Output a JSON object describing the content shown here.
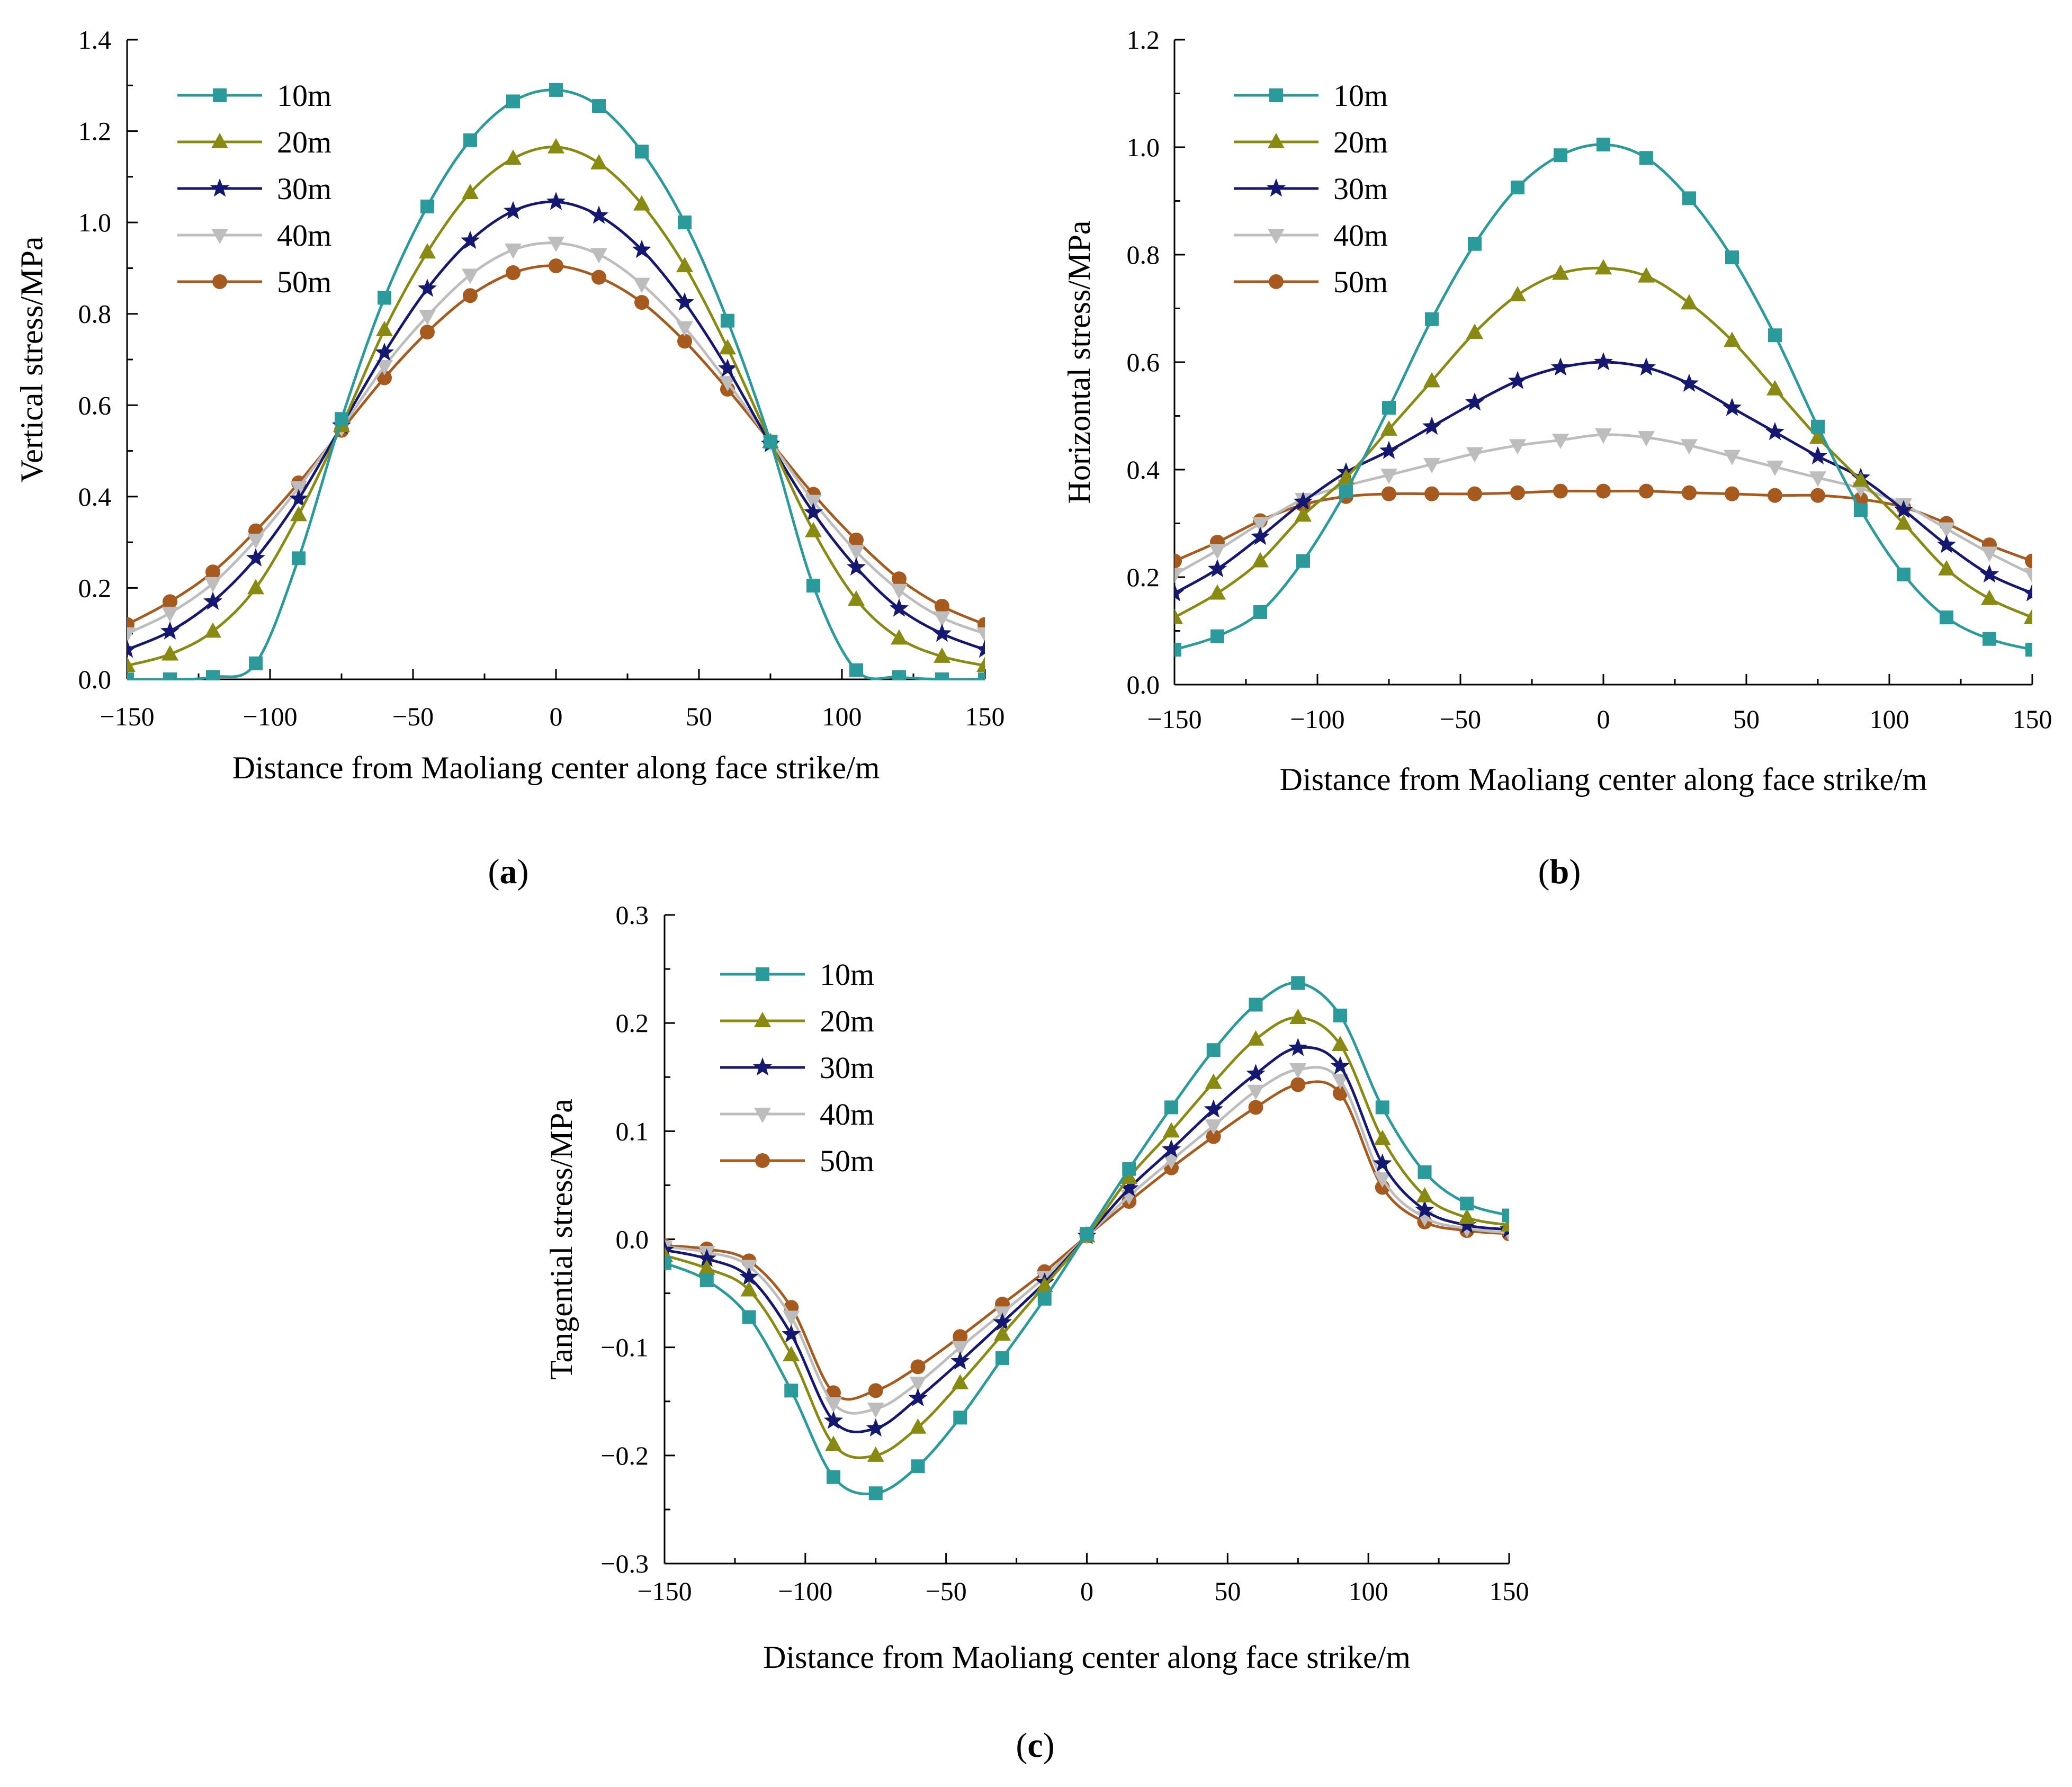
{
  "figure": {
    "panels": [
      {
        "key": "a",
        "label_open": "(",
        "label_letter": "a",
        "label_close": ")"
      },
      {
        "key": "b",
        "label_open": "(",
        "label_letter": "b",
        "label_close": ")"
      },
      {
        "key": "c",
        "label_open": "(",
        "label_letter": "c",
        "label_close": ")"
      }
    ]
  },
  "series_styles": [
    {
      "name": "10m",
      "color": "#2a9a9a",
      "marker": "square"
    },
    {
      "name": "20m",
      "color": "#888a12",
      "marker": "triangle-up"
    },
    {
      "name": "30m",
      "color": "#151870",
      "marker": "star"
    },
    {
      "name": "40m",
      "color": "#bdbdbd",
      "marker": "triangle-down"
    },
    {
      "name": "50m",
      "color": "#a65a1e",
      "marker": "circle"
    }
  ],
  "chart_data": [
    {
      "id": "a",
      "type": "line",
      "title": "",
      "xlabel": "Distance from Maoliang center along face strike/m",
      "ylabel": "Vertical stress/MPa",
      "xlim": [
        -150,
        150
      ],
      "ylim": [
        0,
        1.4
      ],
      "xticks": [
        -150,
        -100,
        -50,
        0,
        50,
        100,
        150
      ],
      "xtick_labels": [
        "−150",
        "−100",
        "−50",
        "0",
        "50",
        "100",
        "150"
      ],
      "yticks": [
        0,
        0.2,
        0.4,
        0.6,
        0.8,
        1.0,
        1.2,
        1.4
      ],
      "ytick_labels": [
        "0.0",
        "0.2",
        "0.4",
        "0.6",
        "0.8",
        "1.0",
        "1.2",
        "1.4"
      ],
      "legend_position": "top-left",
      "x": [
        -150,
        -135,
        -120,
        -105,
        -90,
        -75,
        -60,
        -45,
        -30,
        -15,
        0,
        15,
        30,
        45,
        60,
        75,
        90,
        105,
        120,
        135,
        150
      ],
      "series": [
        {
          "name": "10m",
          "values": [
            0.0,
            0.0,
            0.005,
            0.035,
            0.265,
            0.57,
            0.835,
            1.035,
            1.18,
            1.265,
            1.29,
            1.255,
            1.155,
            1.0,
            0.785,
            0.52,
            0.205,
            0.02,
            0.005,
            0.0,
            0.0
          ]
        },
        {
          "name": "20m",
          "values": [
            0.03,
            0.055,
            0.105,
            0.2,
            0.36,
            0.555,
            0.765,
            0.935,
            1.065,
            1.14,
            1.165,
            1.13,
            1.04,
            0.905,
            0.725,
            0.52,
            0.325,
            0.175,
            0.09,
            0.05,
            0.03
          ]
        },
        {
          "name": "30m",
          "values": [
            0.065,
            0.105,
            0.17,
            0.265,
            0.395,
            0.555,
            0.715,
            0.855,
            0.96,
            1.025,
            1.045,
            1.015,
            0.94,
            0.825,
            0.68,
            0.515,
            0.365,
            0.245,
            0.155,
            0.1,
            0.065
          ]
        },
        {
          "name": "40m",
          "values": [
            0.1,
            0.145,
            0.21,
            0.305,
            0.42,
            0.55,
            0.685,
            0.795,
            0.885,
            0.94,
            0.955,
            0.93,
            0.865,
            0.77,
            0.65,
            0.52,
            0.39,
            0.28,
            0.195,
            0.135,
            0.1
          ]
        },
        {
          "name": "50m",
          "values": [
            0.12,
            0.17,
            0.235,
            0.325,
            0.43,
            0.545,
            0.66,
            0.76,
            0.84,
            0.89,
            0.905,
            0.88,
            0.825,
            0.74,
            0.635,
            0.52,
            0.405,
            0.305,
            0.22,
            0.16,
            0.12
          ]
        }
      ]
    },
    {
      "id": "b",
      "type": "line",
      "title": "",
      "xlabel": "Distance from Maoliang center along face strike/m",
      "ylabel": "Horizontal stress/MPa",
      "xlim": [
        -150,
        150
      ],
      "ylim": [
        0,
        1.2
      ],
      "xticks": [
        -150,
        -100,
        -50,
        0,
        50,
        100,
        150
      ],
      "xtick_labels": [
        "−150",
        "−100",
        "−50",
        "0",
        "50",
        "100",
        "150"
      ],
      "yticks": [
        0,
        0.2,
        0.4,
        0.6,
        0.8,
        1.0,
        1.2
      ],
      "ytick_labels": [
        "0.0",
        "0.2",
        "0.4",
        "0.6",
        "0.8",
        "1.0",
        "1.2"
      ],
      "legend_position": "top-left",
      "x": [
        -150,
        -135,
        -120,
        -105,
        -90,
        -75,
        -60,
        -45,
        -30,
        -15,
        0,
        15,
        30,
        45,
        60,
        75,
        90,
        105,
        120,
        135,
        150
      ],
      "series": [
        {
          "name": "10m",
          "values": [
            0.065,
            0.09,
            0.135,
            0.23,
            0.36,
            0.515,
            0.68,
            0.82,
            0.925,
            0.985,
            1.005,
            0.98,
            0.905,
            0.795,
            0.65,
            0.48,
            0.325,
            0.205,
            0.125,
            0.085,
            0.065
          ]
        },
        {
          "name": "20m",
          "values": [
            0.125,
            0.17,
            0.23,
            0.315,
            0.385,
            0.475,
            0.565,
            0.655,
            0.725,
            0.765,
            0.775,
            0.76,
            0.71,
            0.64,
            0.55,
            0.46,
            0.38,
            0.3,
            0.215,
            0.16,
            0.125
          ]
        },
        {
          "name": "30m",
          "values": [
            0.17,
            0.215,
            0.275,
            0.34,
            0.395,
            0.435,
            0.48,
            0.525,
            0.565,
            0.59,
            0.6,
            0.59,
            0.56,
            0.515,
            0.47,
            0.425,
            0.385,
            0.325,
            0.26,
            0.205,
            0.17
          ]
        },
        {
          "name": "40m",
          "values": [
            0.205,
            0.25,
            0.3,
            0.345,
            0.37,
            0.39,
            0.41,
            0.43,
            0.445,
            0.455,
            0.465,
            0.46,
            0.445,
            0.425,
            0.405,
            0.385,
            0.365,
            0.335,
            0.29,
            0.245,
            0.205
          ]
        },
        {
          "name": "50m",
          "values": [
            0.23,
            0.265,
            0.305,
            0.335,
            0.35,
            0.355,
            0.355,
            0.355,
            0.357,
            0.36,
            0.36,
            0.36,
            0.357,
            0.355,
            0.352,
            0.352,
            0.345,
            0.33,
            0.3,
            0.26,
            0.23
          ]
        }
      ]
    },
    {
      "id": "c",
      "type": "line",
      "title": "",
      "xlabel": "Distance from Maoliang center along face strike/m",
      "ylabel": "Tangential stress/MPa",
      "xlim": [
        -150,
        150
      ],
      "ylim": [
        -0.3,
        0.3
      ],
      "xticks": [
        -150,
        -100,
        -50,
        0,
        50,
        100,
        150
      ],
      "xtick_labels": [
        "−150",
        "−100",
        "−50",
        "0",
        "50",
        "100",
        "150"
      ],
      "yticks": [
        -0.3,
        -0.2,
        -0.1,
        0.0,
        0.1,
        0.2,
        0.3
      ],
      "ytick_labels": [
        "−0.3",
        "−0.2",
        "−0.1",
        "0.0",
        "0.1",
        "0.2",
        "0.3"
      ],
      "legend_position": "top-left",
      "x": [
        -150,
        -135,
        -120,
        -105,
        -90,
        -75,
        -60,
        -45,
        -30,
        -15,
        0,
        15,
        30,
        45,
        60,
        75,
        90,
        105,
        120,
        135,
        150
      ],
      "series": [
        {
          "name": "10m",
          "values": [
            -0.022,
            -0.038,
            -0.072,
            -0.14,
            -0.22,
            -0.235,
            -0.21,
            -0.165,
            -0.11,
            -0.055,
            0.005,
            0.065,
            0.122,
            0.175,
            0.217,
            0.237,
            0.207,
            0.122,
            0.062,
            0.033,
            0.022
          ]
        },
        {
          "name": "20m",
          "values": [
            -0.015,
            -0.027,
            -0.047,
            -0.107,
            -0.19,
            -0.2,
            -0.174,
            -0.133,
            -0.088,
            -0.043,
            0.003,
            0.057,
            0.1,
            0.145,
            0.185,
            0.205,
            0.18,
            0.093,
            0.04,
            0.02,
            0.013
          ]
        },
        {
          "name": "30m",
          "values": [
            -0.01,
            -0.018,
            -0.035,
            -0.088,
            -0.168,
            -0.175,
            -0.147,
            -0.113,
            -0.077,
            -0.04,
            0.003,
            0.047,
            0.083,
            0.12,
            0.153,
            0.177,
            0.16,
            0.07,
            0.027,
            0.013,
            0.009
          ]
        },
        {
          "name": "40m",
          "values": [
            -0.007,
            -0.012,
            -0.025,
            -0.072,
            -0.152,
            -0.157,
            -0.133,
            -0.1,
            -0.068,
            -0.035,
            0.003,
            0.04,
            0.073,
            0.105,
            0.137,
            0.157,
            0.147,
            0.056,
            0.02,
            0.01,
            0.006
          ]
        },
        {
          "name": "50m",
          "values": [
            -0.006,
            -0.009,
            -0.02,
            -0.063,
            -0.142,
            -0.14,
            -0.118,
            -0.09,
            -0.06,
            -0.03,
            0.003,
            0.035,
            0.066,
            0.095,
            0.122,
            0.143,
            0.135,
            0.048,
            0.016,
            0.008,
            0.005
          ]
        }
      ]
    }
  ]
}
